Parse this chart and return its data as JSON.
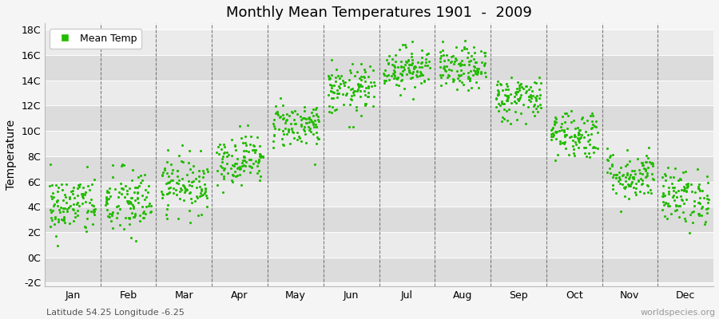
{
  "title": "Monthly Mean Temperatures 1901  -  2009",
  "ylabel": "Temperature",
  "subtitle_left": "Latitude 54.25 Longitude -6.25",
  "subtitle_right": "worldspecies.org",
  "legend_label": "Mean Temp",
  "dot_color": "#22bb00",
  "bg_color": "#f5f5f5",
  "stripe_light": "#ebebeb",
  "stripe_dark": "#dcdcdc",
  "ylim_min": -2,
  "ylim_max": 18,
  "yticks": [
    -2,
    0,
    2,
    4,
    6,
    8,
    10,
    12,
    14,
    16,
    18
  ],
  "ytick_labels": [
    "-2C",
    "0C",
    "2C",
    "4C",
    "6C",
    "8C",
    "10C",
    "12C",
    "14C",
    "16C",
    "18C"
  ],
  "months": [
    "Jan",
    "Feb",
    "Mar",
    "Apr",
    "May",
    "Jun",
    "Jul",
    "Aug",
    "Sep",
    "Oct",
    "Nov",
    "Dec"
  ],
  "num_years": 109,
  "mean_temps": [
    4.1,
    4.3,
    5.8,
    7.8,
    10.5,
    13.2,
    15.0,
    14.9,
    12.6,
    9.8,
    6.5,
    4.8
  ],
  "std_temps": [
    1.2,
    1.4,
    1.1,
    1.0,
    0.9,
    1.0,
    0.85,
    0.85,
    0.9,
    1.0,
    1.0,
    1.1
  ],
  "seed": 42,
  "dot_size": 5
}
